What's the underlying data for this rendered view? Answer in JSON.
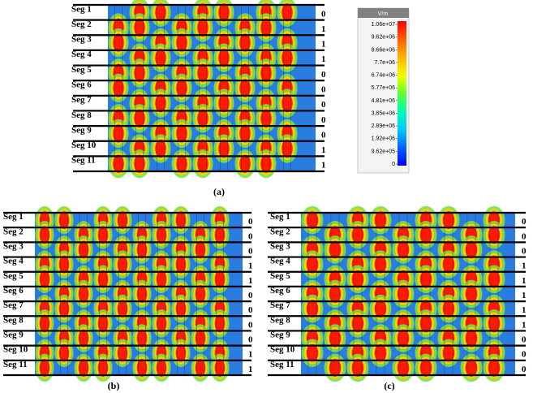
{
  "panels": [
    {
      "caption": "(a)",
      "segments": [
        "Seg 1",
        "Seg 2",
        "Seg 3",
        "Seg 4",
        "Seg 5",
        "Seg 6",
        "Seg 7",
        "Seg 8",
        "Seg 9",
        "Seg 10",
        "Seg 11"
      ],
      "bits": [
        "0",
        "1",
        "1",
        "1",
        "0",
        "0",
        "0",
        "0",
        "0",
        "1",
        "1"
      ]
    },
    {
      "caption": "(b)",
      "segments": [
        "Seg 1",
        "Seg 2",
        "Seg 3",
        "Seg 4",
        "Seg 5",
        "Seg 6",
        "Seg 7",
        "Seg 8",
        "Seg 9",
        "Seg 10",
        "Seg 11"
      ],
      "bits": [
        "0",
        "0",
        "0",
        "1",
        "1",
        "0",
        "0",
        "0",
        "0",
        "1",
        "1"
      ]
    },
    {
      "caption": "(c)",
      "segments": [
        "Seg 1",
        "Seg 2",
        "Seg 3",
        "Seg 4",
        "Seg 5",
        "Seg 6",
        "Seg 7",
        "Seg 8",
        "Seg 9",
        "Seg 10",
        "Seg 11"
      ],
      "bits": [
        "0",
        "0",
        "0",
        "1",
        "1",
        "1",
        "1",
        "1",
        "0",
        "0",
        "0"
      ]
    }
  ],
  "colorbar": {
    "unit": "V/m",
    "ticks": [
      "1.06e+07",
      "9.62e+06",
      "8.66e+06",
      "7.7e+06",
      "6.74e+06",
      "5.77e+06",
      "4.81e+06",
      "3.85e+06",
      "2.89e+06",
      "1.92e+06",
      "9.62e+05",
      "0"
    ],
    "colors": [
      "#ff0000",
      "#ff6000",
      "#ffb000",
      "#f0ff00",
      "#80ff00",
      "#00ff60",
      "#00ffd0",
      "#00c0ff",
      "#0060ff",
      "#0000ff"
    ]
  }
}
